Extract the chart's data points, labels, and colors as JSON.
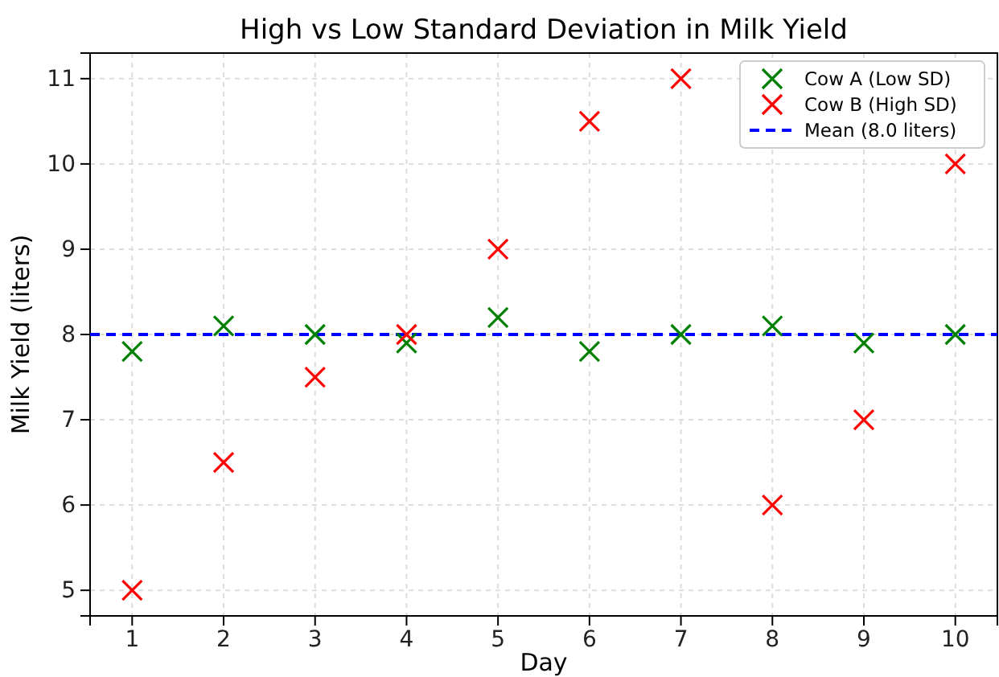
{
  "chart_data": {
    "type": "scatter",
    "title": "High vs Low Standard Deviation in Milk Yield",
    "xlabel": "Day",
    "ylabel": "Milk Yield (liters)",
    "x": [
      1,
      2,
      3,
      4,
      5,
      6,
      7,
      8,
      9,
      10
    ],
    "series": [
      {
        "name": "Cow A (Low SD)",
        "color": "#008000",
        "values": [
          7.8,
          8.1,
          8.0,
          7.9,
          8.2,
          7.8,
          8.0,
          8.1,
          7.9,
          8.0
        ]
      },
      {
        "name": "Cow B (High SD)",
        "color": "#ff0000",
        "values": [
          5,
          6.5,
          7.5,
          8,
          9,
          10.5,
          11,
          6,
          7,
          10
        ]
      }
    ],
    "xlim": [
      0.54,
      10.46
    ],
    "xticks": [
      1,
      2,
      3,
      4,
      5,
      6,
      7,
      8,
      9,
      10
    ],
    "ylim": [
      4.7,
      11.3
    ],
    "yticks": [
      5,
      6,
      7,
      8,
      9,
      10,
      11
    ],
    "ref_lines": [
      {
        "axis": "y",
        "value": 8.0,
        "label": "Mean (8.0 liters)",
        "color": "#0000ff",
        "line_style": "dashed"
      }
    ],
    "grid": true,
    "legend": "top right",
    "marker": "cross"
  }
}
